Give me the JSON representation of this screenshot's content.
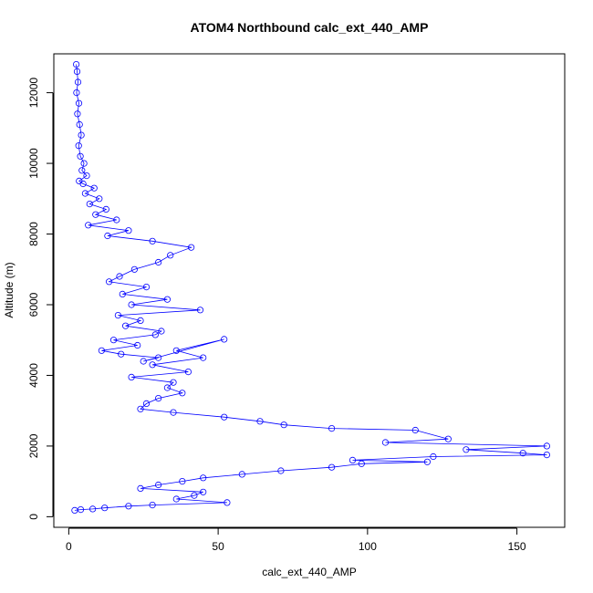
{
  "chart_data": {
    "type": "scatter",
    "title": "ATOM4 Northbound calc_ext_440_AMP",
    "xlabel": "calc_ext_440_AMP",
    "ylabel": "Altitude (m)",
    "xlim": [
      -5,
      166
    ],
    "ylim": [
      -300,
      13100
    ],
    "x_ticks": [
      0,
      50,
      100,
      150
    ],
    "x_tick_labels": [
      "0",
      "50",
      "100",
      "150"
    ],
    "y_ticks": [
      0,
      2000,
      4000,
      6000,
      8000,
      10000,
      12000
    ],
    "y_tick_labels": [
      "0",
      "2000",
      "4000",
      "6000",
      "8000",
      "10000",
      "12000"
    ],
    "grid": false,
    "legend": "none",
    "connected_points": true,
    "marker": "open-circle",
    "color": "#0000ff",
    "series": [
      {
        "x": [
          2.5,
          2.8,
          3.1,
          2.6,
          3.4,
          2.9,
          3.6,
          4.2,
          3.3,
          3.9,
          5.1,
          4.4,
          6.0,
          3.5,
          4.8,
          8.5,
          5.5,
          10.2,
          7.0,
          12.5,
          9.0,
          16.0,
          6.5,
          20.0,
          13.0,
          28.0,
          41.0,
          34.0,
          30.0,
          22.0,
          17.0,
          13.5,
          26.0,
          18.0,
          33.0,
          21.0,
          44.0,
          16.5,
          24.0,
          19.0,
          31.0,
          29.0,
          15.0,
          23.0,
          11.0,
          17.5,
          30.0,
          25.0,
          52.0,
          36.0,
          45.0,
          28.0,
          40.0,
          21.0,
          35.0,
          33.0,
          38.0,
          30.0,
          26.0,
          24.0,
          35.0,
          52.0,
          64.0,
          72.0,
          88.0,
          116.0,
          127.0,
          106.0,
          160.0,
          133.0,
          152.0,
          160.0,
          122.0,
          95.0,
          120.0,
          98.0,
          88.0,
          71.0,
          58.0,
          45.0,
          38.0,
          30.0,
          24.0,
          45.0,
          42.0,
          36.0,
          53.0,
          28.0,
          20.0,
          12.0,
          8.0,
          4.0,
          2.0
        ],
        "y": [
          12800,
          12600,
          12300,
          12000,
          11700,
          11400,
          11100,
          10800,
          10500,
          10200,
          10000,
          9800,
          9650,
          9500,
          9420,
          9300,
          9150,
          9000,
          8850,
          8700,
          8550,
          8400,
          8250,
          8100,
          7950,
          7800,
          7620,
          7400,
          7200,
          7000,
          6800,
          6650,
          6500,
          6300,
          6150,
          6000,
          5850,
          5700,
          5550,
          5400,
          5250,
          5150,
          5000,
          4850,
          4700,
          4600,
          4500,
          4400,
          5020,
          4700,
          4500,
          4300,
          4100,
          3950,
          3800,
          3650,
          3500,
          3350,
          3200,
          3050,
          2950,
          2820,
          2700,
          2600,
          2500,
          2450,
          2200,
          2100,
          2000,
          1900,
          1800,
          1750,
          1700,
          1600,
          1550,
          1500,
          1400,
          1300,
          1200,
          1100,
          1000,
          900,
          800,
          700,
          600,
          500,
          400,
          330,
          300,
          250,
          220,
          200,
          180
        ]
      }
    ]
  }
}
